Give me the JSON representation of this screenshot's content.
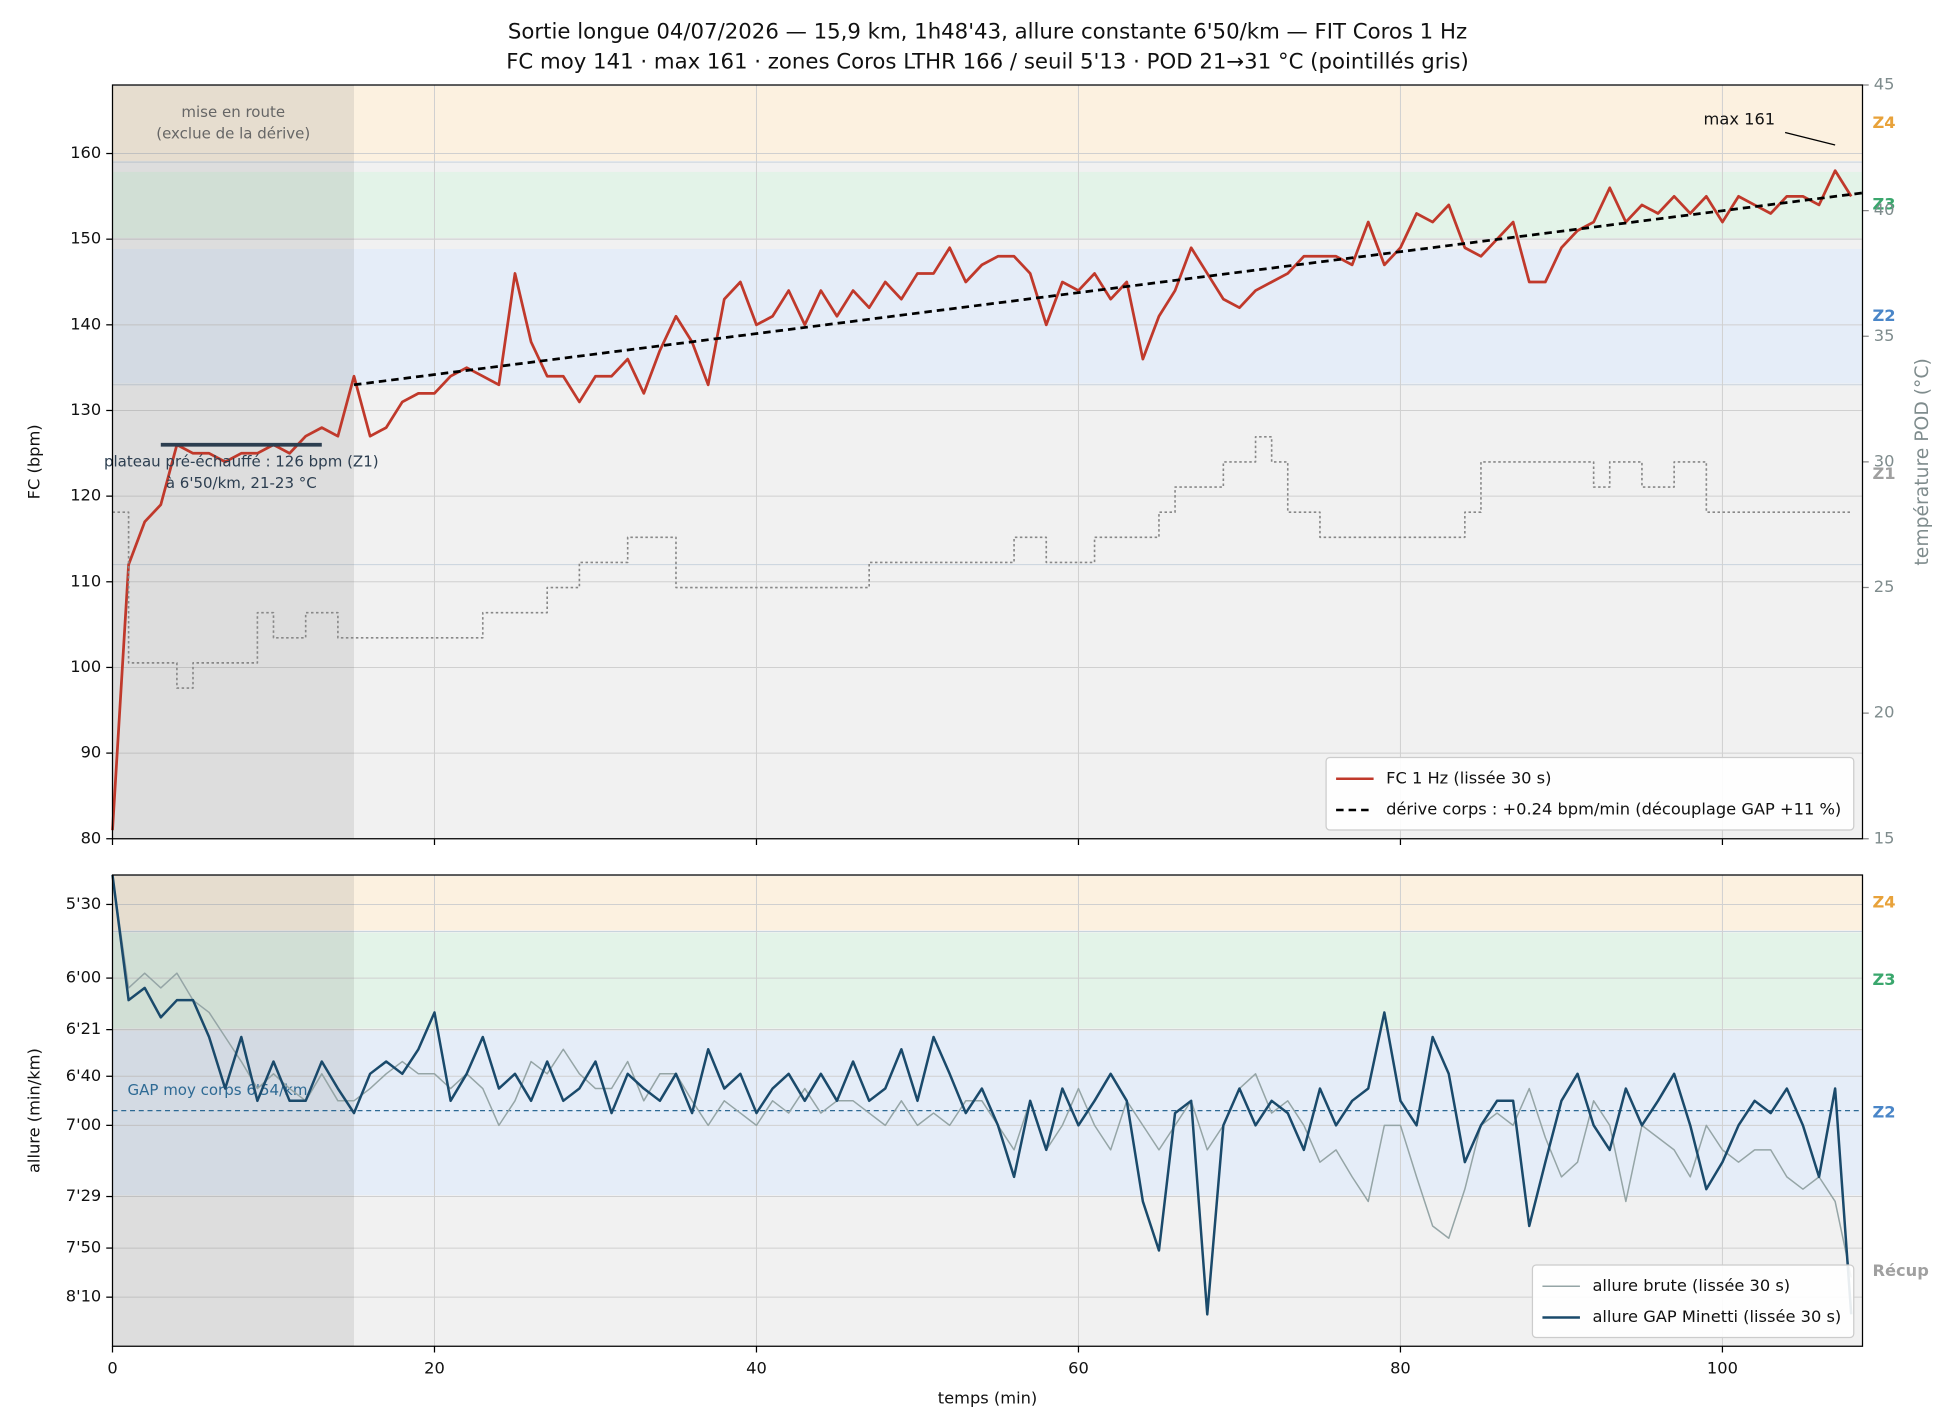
{
  "chart_data": [
    {
      "type": "line",
      "title": "Sortie longue 04/07/2026 — 15,9 km, 1h48'43, allure constante 6'50/km — FIT Coros 1 Hz",
      "subtitle": "FC moy 141 · max 161 · zones Coros LTHR 166 / seuil 5'13 · POD 21→31 °C (pointillés gris)",
      "y_label": "FC (bpm)",
      "y2_label": "température POD (°C)",
      "xlim": [
        0,
        108.7
      ],
      "xticks": [
        0,
        20,
        40,
        60,
        80,
        100
      ],
      "ylim": [
        80,
        168
      ],
      "yticks": [
        80,
        90,
        100,
        110,
        120,
        130,
        140,
        150,
        160
      ],
      "y2lim": [
        15,
        45
      ],
      "y2ticks": [
        15,
        20,
        25,
        30,
        35,
        40,
        45
      ],
      "grid": true,
      "legend": "lower right",
      "zones": [
        {
          "name": "Z4",
          "range": [
            159,
            168
          ],
          "color": "#fcf1e0",
          "label_color": "#e8a23a"
        },
        {
          "name": "Z3",
          "range": [
            150,
            158
          ],
          "color": "#e3f3e8",
          "label_color": "#3aa76d"
        },
        {
          "name": "Z2",
          "range": [
            133,
            149
          ],
          "color": "#e5edf8",
          "label_color": "#4a86c8"
        },
        {
          "name": "Z1",
          "range": [
            112,
            133
          ],
          "color": "#f1f1f1",
          "label_color": "#a0a0a0"
        }
      ],
      "warmup": {
        "x": [
          0,
          15
        ],
        "text": [
          "mise en route",
          "(exclue de la dérive)"
        ]
      },
      "plateau": {
        "x": [
          3,
          13
        ],
        "value": 126,
        "color": "#2c3e50",
        "text": [
          "plateau pré-échauffé : 126 bpm (Z1)",
          "à 6'50/km, 21-23 °C"
        ]
      },
      "max": {
        "text": "max 161",
        "x": 107,
        "value": 161
      },
      "x": [
        0,
        1,
        2,
        3,
        4,
        5,
        6,
        7,
        8,
        9,
        10,
        11,
        12,
        13,
        14,
        15,
        16,
        17,
        18,
        19,
        20,
        21,
        22,
        23,
        24,
        25,
        26,
        27,
        28,
        29,
        30,
        31,
        32,
        33,
        34,
        35,
        36,
        37,
        38,
        39,
        40,
        41,
        42,
        43,
        44,
        45,
        46,
        47,
        48,
        49,
        50,
        51,
        52,
        53,
        54,
        55,
        56,
        57,
        58,
        59,
        60,
        61,
        62,
        63,
        64,
        65,
        66,
        67,
        68,
        69,
        70,
        71,
        72,
        73,
        74,
        75,
        76,
        77,
        78,
        79,
        80,
        81,
        82,
        83,
        84,
        85,
        86,
        87,
        88,
        89,
        90,
        91,
        92,
        93,
        94,
        95,
        96,
        97,
        98,
        99,
        100,
        101,
        102,
        103,
        104,
        105,
        106,
        107,
        108
      ],
      "series": [
        {
          "name": "FC 1 Hz (lissée 30 s)",
          "color": "#c0392b",
          "values": [
            81,
            112,
            117,
            119,
            126,
            125,
            125,
            124,
            125,
            125,
            126,
            125,
            127,
            128,
            127,
            134,
            127,
            128,
            131,
            132,
            132,
            134,
            135,
            134,
            133,
            146,
            138,
            134,
            134,
            131,
            134,
            134,
            136,
            132,
            137,
            141,
            138,
            133,
            143,
            145,
            140,
            141,
            144,
            140,
            144,
            141,
            144,
            142,
            145,
            143,
            146,
            146,
            149,
            145,
            147,
            148,
            148,
            146,
            140,
            145,
            144,
            146,
            143,
            145,
            136,
            141,
            144,
            149,
            146,
            143,
            142,
            144,
            145,
            146,
            148,
            148,
            148,
            147,
            152,
            147,
            149,
            153,
            152,
            154,
            149,
            148,
            150,
            152,
            145,
            145,
            149,
            151,
            152,
            156,
            152,
            154,
            153,
            155,
            153,
            155,
            152,
            155,
            154,
            153,
            155,
            155,
            154,
            158,
            155
          ]
        },
        {
          "name": "dérive corps : +0.24 bpm/min (découplage GAP +11 %)",
          "color": "#000000",
          "dash": true,
          "x": [
            15,
            108.7
          ],
          "values": [
            133,
            155.4
          ]
        },
        {
          "color": "#888888",
          "axis": "y2",
          "step": true,
          "values": [
            28,
            22,
            22,
            22,
            21,
            22,
            22,
            22,
            22,
            24,
            23,
            23,
            24,
            24,
            23,
            23,
            23,
            23,
            23,
            23,
            23,
            23,
            23,
            24,
            24,
            24,
            24,
            25,
            25,
            26,
            26,
            26,
            27,
            27,
            27,
            25,
            25,
            25,
            25,
            25,
            25,
            25,
            25,
            25,
            25,
            25,
            25,
            26,
            26,
            26,
            26,
            26,
            26,
            26,
            26,
            26,
            27,
            27,
            26,
            26,
            26,
            27,
            27,
            27,
            27,
            28,
            29,
            29,
            29,
            30,
            30,
            31,
            30,
            28,
            28,
            27,
            27,
            27,
            27,
            27,
            27,
            27,
            27,
            27,
            28,
            30,
            30,
            30,
            30,
            30,
            30,
            30,
            29,
            30,
            30,
            29,
            29,
            30,
            30,
            28,
            28,
            28,
            28,
            28,
            28,
            28,
            28,
            28,
            28
          ]
        }
      ]
    },
    {
      "type": "line",
      "x_label": "temps (min)",
      "y_label": "allure (min/km)",
      "xlim": [
        0,
        108.7
      ],
      "xticks": [
        0,
        20,
        40,
        60,
        80,
        100
      ],
      "ylim": [
        318,
        510
      ],
      "inverted": true,
      "yticks": [
        {
          "value": 330,
          "label": "5'30"
        },
        {
          "value": 360,
          "label": "6'00"
        },
        {
          "value": 381,
          "label": "6'21"
        },
        {
          "value": 400,
          "label": "6'40"
        },
        {
          "value": 420,
          "label": "7'00"
        },
        {
          "value": 449,
          "label": "7'29"
        },
        {
          "value": 470,
          "label": "7'50"
        },
        {
          "value": 490,
          "label": "8'10"
        }
      ],
      "grid": true,
      "legend": "lower right",
      "zones": [
        {
          "name": "Z4",
          "range": [
            318,
            341
          ],
          "color": "#fcf1e0",
          "label_color": "#e8a23a"
        },
        {
          "name": "Z3",
          "range": [
            341,
            381
          ],
          "color": "#e3f3e8",
          "label_color": "#3aa76d"
        },
        {
          "name": "Z2",
          "range": [
            381,
            449
          ],
          "color": "#e5edf8",
          "label_color": "#4a86c8"
        },
        {
          "name": "Récup",
          "range": [
            449,
            510
          ],
          "color": "#f1f1f1",
          "label_color": "#a0a0a0"
        }
      ],
      "warmup": {
        "x": [
          0,
          15
        ]
      },
      "gap_mean": {
        "text": "GAP moy corps 6'54/km",
        "value": 414,
        "color": "#2e6a94"
      },
      "x": [
        0,
        1,
        2,
        3,
        4,
        5,
        6,
        7,
        8,
        9,
        10,
        11,
        12,
        13,
        14,
        15,
        16,
        17,
        18,
        19,
        20,
        21,
        22,
        23,
        24,
        25,
        26,
        27,
        28,
        29,
        30,
        31,
        32,
        33,
        34,
        35,
        36,
        37,
        38,
        39,
        40,
        41,
        42,
        43,
        44,
        45,
        46,
        47,
        48,
        49,
        50,
        51,
        52,
        53,
        54,
        55,
        56,
        57,
        58,
        59,
        60,
        61,
        62,
        63,
        64,
        65,
        66,
        67,
        68,
        69,
        70,
        71,
        72,
        73,
        74,
        75,
        76,
        77,
        78,
        79,
        80,
        81,
        82,
        83,
        84,
        85,
        86,
        87,
        88,
        89,
        90,
        91,
        92,
        93,
        94,
        95,
        96,
        97,
        98,
        99,
        100,
        101,
        102,
        103,
        104,
        105,
        106,
        107,
        108
      ],
      "series": [
        {
          "name": "allure brute (lissée 30 s)",
          "color": "#95a5a6",
          "width": 1.2,
          "values": [
            318,
            364,
            358,
            364,
            358,
            369,
            374,
            384,
            394,
            405,
            399,
            405,
            410,
            399,
            410,
            410,
            405,
            399,
            394,
            399,
            399,
            405,
            399,
            405,
            420,
            410,
            394,
            399,
            389,
            399,
            405,
            405,
            394,
            410,
            399,
            399,
            410,
            420,
            410,
            415,
            420,
            410,
            415,
            405,
            415,
            410,
            410,
            415,
            420,
            410,
            420,
            415,
            420,
            410,
            410,
            420,
            430,
            410,
            430,
            420,
            405,
            420,
            430,
            410,
            420,
            430,
            420,
            410,
            430,
            420,
            405,
            399,
            415,
            410,
            420,
            435,
            430,
            441,
            451,
            420,
            420,
            441,
            461,
            466,
            446,
            420,
            415,
            420,
            405,
            425,
            441,
            435,
            410,
            420,
            451,
            420,
            425,
            430,
            441,
            420,
            430,
            435,
            430,
            430,
            441,
            446,
            441,
            451,
            482
          ]
        },
        {
          "name": "allure GAP Minetti (lissée 30 s)",
          "color": "#1a4a6b",
          "width": 2,
          "values": [
            318,
            369,
            364,
            376,
            369,
            369,
            384,
            405,
            384,
            410,
            394,
            410,
            410,
            394,
            405,
            415,
            399,
            394,
            399,
            389,
            374,
            410,
            399,
            384,
            405,
            399,
            410,
            394,
            410,
            405,
            394,
            415,
            399,
            405,
            410,
            399,
            415,
            389,
            405,
            399,
            415,
            405,
            399,
            410,
            399,
            410,
            394,
            410,
            405,
            389,
            410,
            384,
            399,
            415,
            405,
            420,
            441,
            410,
            430,
            405,
            420,
            410,
            399,
            410,
            451,
            471,
            415,
            410,
            497,
            420,
            405,
            420,
            410,
            415,
            430,
            405,
            420,
            410,
            405,
            374,
            410,
            420,
            384,
            399,
            435,
            420,
            410,
            410,
            461,
            435,
            410,
            399,
            420,
            430,
            405,
            420,
            410,
            399,
            420,
            446,
            435,
            420,
            410,
            415,
            405,
            420,
            441,
            405,
            497
          ]
        }
      ]
    }
  ]
}
